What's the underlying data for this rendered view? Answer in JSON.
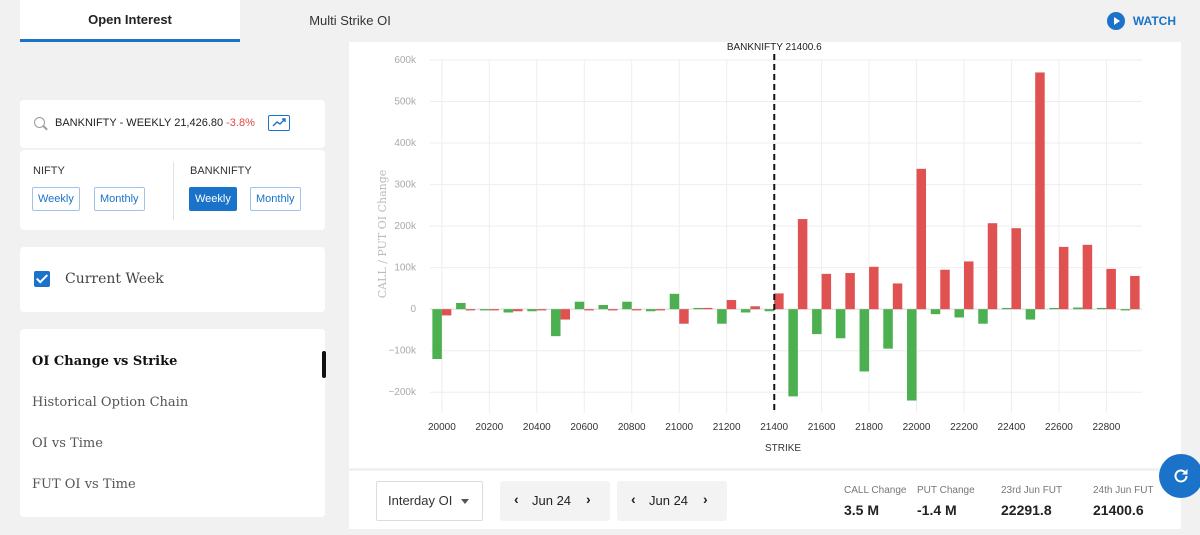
{
  "tabs": [
    {
      "label": "Open Interest",
      "active": true
    },
    {
      "label": "Multi Strike OI",
      "active": false
    }
  ],
  "watch": {
    "label": "WATCH",
    "icon": "play-circle-icon"
  },
  "search": {
    "icon": "search-icon",
    "text": "BANKNIFTY - WEEKLY 21,426.80",
    "change": "-3.8%",
    "trend_icon": "trend-chart-icon"
  },
  "indices": [
    {
      "label": "NIFTY",
      "options": [
        "Weekly",
        "Monthly"
      ],
      "selected": null
    },
    {
      "label": "BANKNIFTY",
      "options": [
        "Weekly",
        "Monthly"
      ],
      "selected": "Weekly"
    }
  ],
  "current_week": {
    "label": "Current Week",
    "checked": true
  },
  "menu": {
    "items": [
      {
        "label": "OI Change vs Strike",
        "active": true
      },
      {
        "label": "Historical Option Chain",
        "active": false
      },
      {
        "label": "OI vs Time",
        "active": false
      },
      {
        "label": "FUT OI vs Time",
        "active": false
      }
    ]
  },
  "controls": {
    "oi_select": "Interday OI",
    "expiry1": "Jun 24",
    "expiry2": "Jun 24"
  },
  "stats": [
    {
      "label": "CALL Change",
      "value": "3.5 M"
    },
    {
      "label": "PUT Change",
      "value": "-1.4 M"
    },
    {
      "label": "23rd Jun FUT",
      "value": "22291.8"
    },
    {
      "label": "24th Jun FUT",
      "value": "21400.6"
    }
  ],
  "colors": {
    "accent": "#1a73c9",
    "call": "#e05252",
    "put": "#4caf50",
    "negative": "#e04848"
  },
  "chart_data": {
    "type": "bar",
    "title": "",
    "xlabel": "STRIKE",
    "ylabel": "CALL / PUT OI Change",
    "spot_label": "BANKNIFTY 21400.6",
    "spot_value": 21400.6,
    "xlim": [
      19950,
      22950
    ],
    "ylim": [
      -250000,
      600000
    ],
    "y_ticks": [
      600000,
      500000,
      400000,
      300000,
      200000,
      100000,
      0,
      -100000,
      -200000
    ],
    "y_tick_labels": [
      "600k",
      "500k",
      "400k",
      "300k",
      "200k",
      "100k",
      "0",
      "−100k",
      "−200k"
    ],
    "x_ticks": [
      20000,
      20200,
      20400,
      20600,
      20800,
      21000,
      21200,
      21400,
      21600,
      21800,
      22000,
      22200,
      22400,
      22600,
      22800
    ],
    "x_tick_labels": [
      "20000",
      "20200",
      "20400",
      "20600",
      "20800",
      "21000",
      "21200",
      "21400",
      "21600",
      "21800",
      "22000",
      "22200",
      "22400",
      "22600",
      "22800"
    ],
    "categories": [
      20000,
      20100,
      20200,
      20300,
      20400,
      20500,
      20600,
      20700,
      20800,
      20900,
      21000,
      21100,
      21200,
      21300,
      21400,
      21500,
      21600,
      21700,
      21800,
      21900,
      22000,
      22100,
      22200,
      22300,
      22400,
      22500,
      22600,
      22700,
      22800,
      22900
    ],
    "series": [
      {
        "name": "PUT OI Change",
        "values": [
          -120000,
          15000,
          -3000,
          -8000,
          -5000,
          -65000,
          18000,
          10000,
          18000,
          -5000,
          37000,
          3000,
          -35000,
          -8000,
          -5000,
          -210000,
          -60000,
          -70000,
          -150000,
          -95000,
          -220000,
          -12000,
          -20000,
          -35000,
          3000,
          -25000,
          3000,
          4000,
          3000,
          -3000
        ]
      },
      {
        "name": "CALL OI Change",
        "values": [
          -15000,
          -3000,
          -3000,
          -5000,
          -3000,
          -25000,
          -3000,
          -3000,
          -3000,
          -3000,
          -35000,
          3000,
          22000,
          7000,
          38000,
          217000,
          85000,
          87000,
          102000,
          62000,
          338000,
          95000,
          115000,
          207000,
          195000,
          570000,
          150000,
          155000,
          97000,
          80000
        ]
      }
    ]
  }
}
